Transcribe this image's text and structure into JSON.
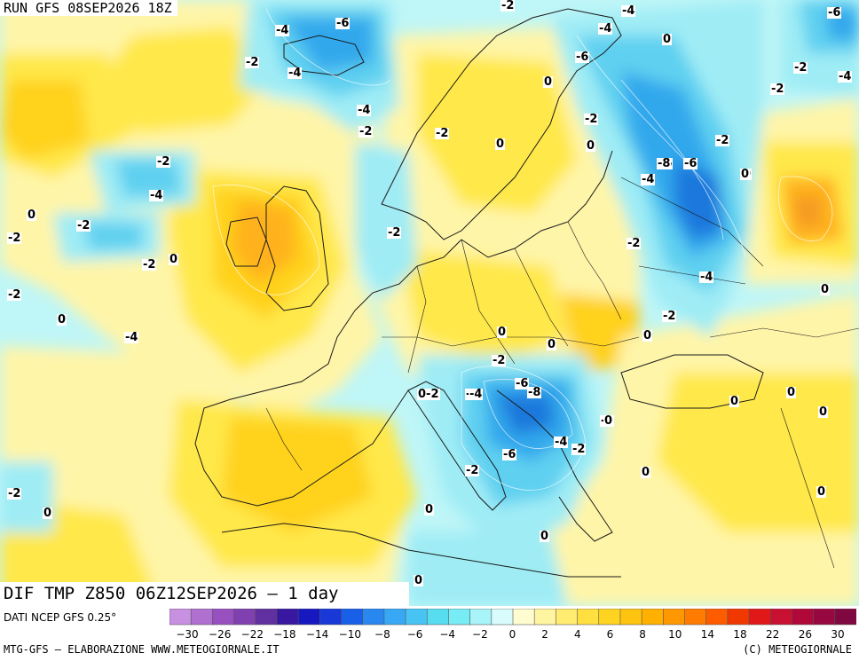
{
  "header": {
    "run_label": "RUN GFS 08SEP2026 18Z"
  },
  "map": {
    "title": "DIF TMP Z850 06Z12SEP2026 — 1 day",
    "palette": {
      "ocean_base": "#bff6f7",
      "warm_light": "#fff5a8",
      "warm": "#ffe84a",
      "warm_mid": "#ffd21e",
      "warm_strong": "#ffb21a",
      "warm_max": "#f59a20",
      "cold_light": "#9fecf5",
      "cold": "#5fd0f0",
      "cold_mid": "#30a8ec",
      "cold_strong": "#1a78dc"
    },
    "isoline_labels": [
      {
        "text": "-2"
      },
      {
        "text": "-6"
      },
      {
        "text": "-4"
      },
      {
        "text": "-6"
      },
      {
        "text": "-4"
      },
      {
        "text": "-2"
      },
      {
        "text": "-4"
      },
      {
        "text": "0"
      },
      {
        "text": "-2"
      },
      {
        "text": "-4"
      },
      {
        "text": "-2"
      },
      {
        "text": "-6"
      },
      {
        "text": "-4"
      },
      {
        "text": "-2"
      },
      {
        "text": "0"
      },
      {
        "text": "-2"
      },
      {
        "text": "0"
      },
      {
        "text": "-2"
      },
      {
        "text": "-4"
      },
      {
        "text": "-6"
      },
      {
        "text": "0"
      },
      {
        "text": "-2"
      },
      {
        "text": "0"
      },
      {
        "text": "0"
      },
      {
        "text": "-2"
      },
      {
        "text": "-2"
      },
      {
        "text": "-4"
      },
      {
        "text": "0"
      },
      {
        "text": "-2"
      },
      {
        "text": "-2"
      },
      {
        "text": "-8"
      },
      {
        "text": "-6"
      },
      {
        "text": "0"
      },
      {
        "text": "-2"
      },
      {
        "text": "-4"
      },
      {
        "text": "-4"
      },
      {
        "text": "-2"
      },
      {
        "text": "0"
      },
      {
        "text": "0"
      },
      {
        "text": "-2"
      },
      {
        "text": "-2"
      },
      {
        "text": "-4"
      },
      {
        "text": "0"
      },
      {
        "text": "0"
      },
      {
        "text": "-2"
      },
      {
        "text": "0"
      },
      {
        "text": "-2"
      },
      {
        "text": "-2"
      },
      {
        "text": "0"
      },
      {
        "text": "0"
      },
      {
        "text": "0"
      },
      {
        "text": "-2"
      },
      {
        "text": "0-2"
      },
      {
        "text": "-4"
      },
      {
        "text": "-6"
      },
      {
        "text": "-8"
      },
      {
        "text": "0"
      },
      {
        "text": "0"
      },
      {
        "text": "0"
      },
      {
        "text": "0"
      },
      {
        "text": "0"
      },
      {
        "text": "-4"
      },
      {
        "text": "-2"
      },
      {
        "text": "-6"
      },
      {
        "text": "-2"
      },
      {
        "text": "0"
      },
      {
        "text": "0"
      },
      {
        "text": "0"
      },
      {
        "text": "-2"
      },
      {
        "text": "0"
      },
      {
        "text": "0"
      },
      {
        "text": "0"
      }
    ]
  },
  "footer": {
    "source": "DATI NCEP GFS 0.25°",
    "credit": "MTG-GFS — ELABORAZIONE WWW.METEOGIORNALE.IT",
    "copyright": "(C) METEOGIORNALE"
  },
  "colorbar": {
    "colors": [
      "#c890e0",
      "#b070d0",
      "#9850c0",
      "#8040b0",
      "#6030a0",
      "#3818a0",
      "#1818c0",
      "#1838d8",
      "#1860e8",
      "#2888f0",
      "#38a8f4",
      "#48c4f4",
      "#58dcf0",
      "#78ecf4",
      "#a8f4f8",
      "#d8fcfc",
      "#fffcd0",
      "#fff4a0",
      "#ffec70",
      "#ffe040",
      "#ffd420",
      "#ffc410",
      "#ffb000",
      "#ff9800",
      "#ff7c00",
      "#ff5c00",
      "#f03800",
      "#e01818",
      "#c81030",
      "#b00838",
      "#980840",
      "#800840"
    ],
    "ticks": [
      "−30",
      "−26",
      "−22",
      "−18",
      "−14",
      "−10",
      "−8",
      "−6",
      "−4",
      "−2",
      "0",
      "2",
      "4",
      "6",
      "8",
      "10",
      "14",
      "18",
      "22",
      "26",
      "30"
    ]
  }
}
